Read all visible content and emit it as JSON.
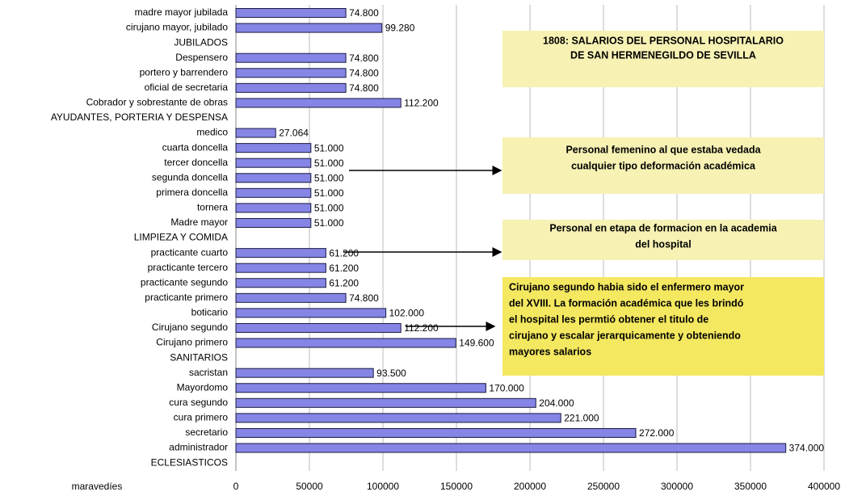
{
  "chart_data": {
    "type": "bar",
    "orientation": "horizontal",
    "title": [
      "1808: SALARIOS DEL PERSONAL HOSPITALARIO",
      "DE SAN HERMENEGILDO DE SEVILLA"
    ],
    "xlabel": "maravedíes",
    "color": "#8585e6",
    "grid": true,
    "categories": [
      "madre mayor jubilada",
      "cirujano mayor, jubilado",
      "JUBILADOS",
      "Despensero",
      "portero y barrendero",
      "oficial de secretaria",
      "Cobrador y sobrestante de obras",
      "AYUDANTES, PORTERIA Y DESPENSA",
      "medico",
      "cuarta doncella",
      "tercer doncella",
      "segunda doncella",
      "primera doncella",
      "tornera",
      "Madre mayor",
      "LIMPIEZA Y COMIDA",
      "practicante cuarto",
      "practicante tercero",
      "practicante segundo",
      "practicante primero",
      "boticario",
      "Cirujano segundo",
      "Cirujano primero",
      "SANITARIOS",
      "sacristan",
      "Mayordomo",
      "cura segundo",
      "cura primero",
      "secretario",
      "administrador",
      "ECLESIASTICOS"
    ],
    "values": [
      74800,
      99280,
      null,
      74800,
      74800,
      74800,
      112200,
      null,
      27064,
      51000,
      51000,
      51000,
      51000,
      51000,
      51000,
      null,
      61200,
      61200,
      61200,
      74800,
      102000,
      112200,
      149600,
      null,
      93500,
      170000,
      204000,
      221000,
      272000,
      374000,
      null
    ],
    "value_labels": [
      "74.800",
      "99.280",
      null,
      "74.800",
      "74.800",
      "74.800",
      "112.200",
      null,
      "27.064",
      "51.000",
      "51.000",
      "51.000",
      "51.000",
      "51.000",
      "51.000",
      null,
      "61.200",
      "61.200",
      "61.200",
      "74.800",
      "102.000",
      "112.200",
      "149.600",
      null,
      "93.500",
      "170.000",
      "204.000",
      "221.000",
      "272.000",
      "374.000",
      null
    ],
    "xlim": [
      0,
      400000
    ],
    "xticks": [
      0,
      50000,
      100000,
      150000,
      200000,
      250000,
      300000,
      350000,
      400000
    ],
    "annotations": [
      {
        "lines": [
          "Personal femenino al que estaba vedada",
          "cualquier tipo deformación académica"
        ]
      },
      {
        "lines": [
          "Personal en etapa de formacion en la academia",
          "del hospital"
        ]
      },
      {
        "lines": [
          "Cirujano segundo habia sido el enfermero mayor",
          "del XVIII. La formación académica que les brindó",
          "el hospital les permtió obtener el titulo de",
          "cirujano y  escalar jerarquicamente y obteniendo",
          "mayores salarios"
        ]
      }
    ]
  }
}
